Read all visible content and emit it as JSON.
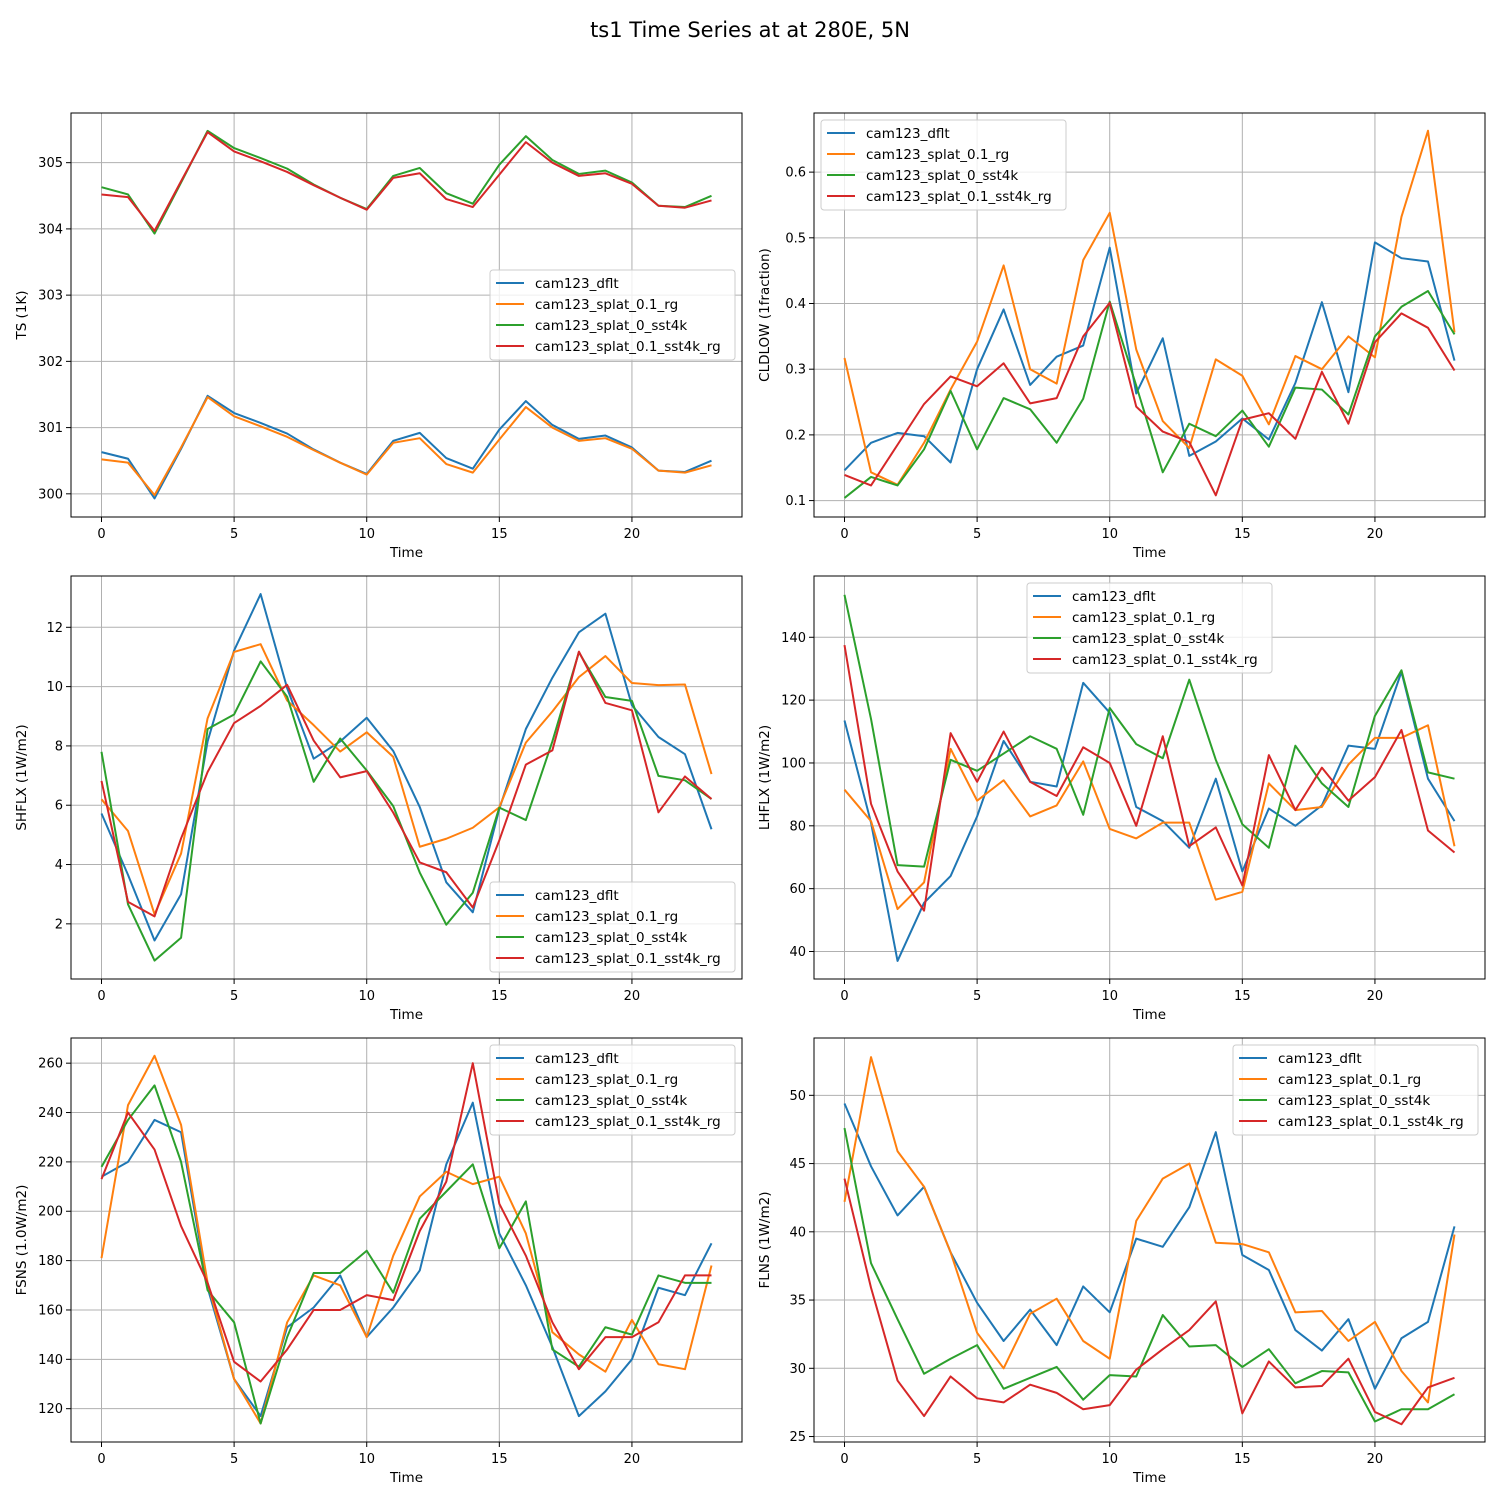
{
  "suptitle": "ts1 Time Series at at 280E, 5N",
  "colors": {
    "cam123_dflt": "#1f77b4",
    "cam123_splat_0.1_rg": "#ff7f0e",
    "cam123_splat_0_sst4k": "#2ca02c",
    "cam123_splat_0.1_sst4k_rg": "#d62728"
  },
  "chart_data": [
    {
      "type": "line",
      "title": "",
      "xlabel": "Time",
      "ylabel": "TS (1K)",
      "xlim": [
        -1.15,
        24.15
      ],
      "ylim": [
        299.65,
        305.75
      ],
      "xticks": [
        0,
        5,
        10,
        15,
        20
      ],
      "yticks": [
        300,
        301,
        302,
        303,
        304,
        305
      ],
      "legend_loc": "center-right",
      "grid": true,
      "x": [
        0,
        1,
        2,
        3,
        4,
        5,
        6,
        7,
        8,
        9,
        10,
        11,
        12,
        13,
        14,
        15,
        16,
        17,
        18,
        19,
        20,
        21,
        22,
        23
      ],
      "series": [
        {
          "name": "cam123_dflt",
          "color": "#1f77b4",
          "values": [
            300.63,
            300.53,
            299.93,
            300.68,
            301.48,
            301.22,
            301.07,
            300.91,
            300.67,
            300.47,
            300.3,
            300.8,
            300.92,
            300.54,
            300.38,
            300.97,
            301.4,
            301.04,
            300.83,
            300.88,
            300.7,
            300.35,
            300.33,
            300.5
          ]
        },
        {
          "name": "cam123_splat_0.1_rg",
          "color": "#ff7f0e",
          "values": [
            300.52,
            300.47,
            299.98,
            300.7,
            301.46,
            301.17,
            301.02,
            300.86,
            300.66,
            300.47,
            300.29,
            300.77,
            300.84,
            300.45,
            300.32,
            300.82,
            301.31,
            301.0,
            300.8,
            300.84,
            300.68,
            300.35,
            300.32,
            300.43
          ]
        },
        {
          "name": "cam123_splat_0_sst4k",
          "color": "#2ca02c",
          "values": [
            304.63,
            304.52,
            303.93,
            304.7,
            305.48,
            305.22,
            305.07,
            304.91,
            304.67,
            304.47,
            304.3,
            304.8,
            304.92,
            304.54,
            304.38,
            304.97,
            305.4,
            305.04,
            304.83,
            304.88,
            304.7,
            304.35,
            304.33,
            304.5
          ]
        },
        {
          "name": "cam123_splat_0.1_sst4k_rg",
          "color": "#d62728",
          "values": [
            304.52,
            304.48,
            303.97,
            304.72,
            305.46,
            305.17,
            305.02,
            304.86,
            304.66,
            304.47,
            304.29,
            304.77,
            304.84,
            304.45,
            304.33,
            304.82,
            305.31,
            305.0,
            304.8,
            304.84,
            304.68,
            304.35,
            304.32,
            304.43
          ]
        }
      ]
    },
    {
      "type": "line",
      "title": "",
      "xlabel": "Time",
      "ylabel": "CLDLOW (1fraction)",
      "xlim": [
        -1.15,
        24.15
      ],
      "ylim": [
        0.075,
        0.69
      ],
      "xticks": [
        0,
        5,
        10,
        15,
        20
      ],
      "yticks": [
        0.1,
        0.2,
        0.3,
        0.4,
        0.5,
        0.6
      ],
      "legend_loc": "top-left",
      "grid": true,
      "x": [
        0,
        1,
        2,
        3,
        4,
        5,
        6,
        7,
        8,
        9,
        10,
        11,
        12,
        13,
        14,
        15,
        16,
        17,
        18,
        19,
        20,
        21,
        22,
        23
      ],
      "series": [
        {
          "name": "cam123_dflt",
          "color": "#1f77b4",
          "values": [
            0.146,
            0.188,
            0.203,
            0.198,
            0.158,
            0.3,
            0.391,
            0.276,
            0.319,
            0.336,
            0.485,
            0.263,
            0.347,
            0.168,
            0.19,
            0.225,
            0.193,
            0.279,
            0.402,
            0.265,
            0.493,
            0.469,
            0.464,
            0.313
          ]
        },
        {
          "name": "cam123_splat_0.1_rg",
          "color": "#ff7f0e",
          "values": [
            0.317,
            0.143,
            0.124,
            0.188,
            0.269,
            0.342,
            0.458,
            0.3,
            0.278,
            0.466,
            0.538,
            0.33,
            0.221,
            0.18,
            0.315,
            0.29,
            0.216,
            0.32,
            0.3,
            0.35,
            0.318,
            0.532,
            0.663,
            0.356
          ]
        },
        {
          "name": "cam123_splat_0_sst4k",
          "color": "#2ca02c",
          "values": [
            0.104,
            0.136,
            0.123,
            0.178,
            0.267,
            0.178,
            0.256,
            0.239,
            0.188,
            0.255,
            0.403,
            0.275,
            0.143,
            0.217,
            0.198,
            0.237,
            0.182,
            0.272,
            0.269,
            0.231,
            0.35,
            0.395,
            0.419,
            0.353
          ]
        },
        {
          "name": "cam123_splat_0.1_sst4k_rg",
          "color": "#d62728",
          "values": [
            0.139,
            0.123,
            0.185,
            0.247,
            0.289,
            0.274,
            0.309,
            0.248,
            0.256,
            0.35,
            0.401,
            0.243,
            0.205,
            0.189,
            0.108,
            0.223,
            0.233,
            0.194,
            0.296,
            0.217,
            0.341,
            0.385,
            0.363,
            0.298
          ]
        }
      ]
    },
    {
      "type": "line",
      "title": "",
      "xlabel": "Time",
      "ylabel": "SHFLX (1W/m2)",
      "xlim": [
        -1.15,
        24.15
      ],
      "ylim": [
        0.14,
        13.73
      ],
      "xticks": [
        0,
        5,
        10,
        15,
        20
      ],
      "yticks": [
        2,
        4,
        6,
        8,
        10,
        12
      ],
      "legend_loc": "bottom-right",
      "grid": true,
      "x": [
        0,
        1,
        2,
        3,
        4,
        5,
        6,
        7,
        8,
        9,
        10,
        11,
        12,
        13,
        14,
        15,
        16,
        17,
        18,
        19,
        20,
        21,
        22,
        23
      ],
      "series": [
        {
          "name": "cam123_dflt",
          "color": "#1f77b4",
          "values": [
            5.72,
            3.65,
            1.44,
            3.0,
            8.15,
            11.22,
            13.12,
            9.95,
            7.57,
            8.15,
            8.95,
            7.83,
            5.94,
            3.4,
            2.39,
            5.88,
            8.57,
            10.3,
            11.83,
            12.46,
            9.37,
            8.3,
            7.72,
            5.19
          ]
        },
        {
          "name": "cam123_splat_0.1_rg",
          "color": "#ff7f0e",
          "values": [
            6.2,
            5.13,
            2.32,
            4.37,
            8.93,
            11.17,
            11.43,
            9.53,
            8.7,
            7.81,
            8.46,
            7.63,
            4.6,
            4.87,
            5.24,
            5.93,
            8.11,
            9.16,
            10.32,
            11.03,
            10.12,
            10.05,
            10.07,
            7.05
          ]
        },
        {
          "name": "cam123_splat_0_sst4k",
          "color": "#2ca02c",
          "values": [
            7.8,
            2.66,
            0.76,
            1.53,
            8.57,
            9.06,
            10.85,
            9.66,
            6.79,
            8.25,
            7.17,
            5.97,
            3.73,
            1.97,
            3.05,
            5.92,
            5.5,
            8.15,
            11.16,
            9.65,
            9.52,
            6.99,
            6.84,
            6.21
          ]
        },
        {
          "name": "cam123_splat_0.1_sst4k_rg",
          "color": "#d62728",
          "values": [
            6.82,
            2.74,
            2.25,
            4.88,
            7.12,
            8.77,
            9.35,
            10.06,
            8.18,
            6.94,
            7.15,
            5.75,
            4.07,
            3.74,
            2.55,
            4.82,
            7.37,
            7.85,
            11.18,
            9.45,
            9.2,
            5.76,
            6.97,
            6.21
          ]
        }
      ]
    },
    {
      "type": "line",
      "title": "",
      "xlabel": "Time",
      "ylabel": "LHFLX (1W/m2)",
      "xlim": [
        -1.15,
        24.15
      ],
      "ylim": [
        31.25,
        159.5
      ],
      "xticks": [
        0,
        5,
        10,
        15,
        20
      ],
      "yticks": [
        40,
        60,
        80,
        100,
        120,
        140
      ],
      "legend_loc": "top-center",
      "grid": true,
      "x": [
        0,
        1,
        2,
        3,
        4,
        5,
        6,
        7,
        8,
        9,
        10,
        11,
        12,
        13,
        14,
        15,
        16,
        17,
        18,
        19,
        20,
        21,
        22,
        23
      ],
      "series": [
        {
          "name": "cam123_dflt",
          "color": "#1f77b4",
          "values": [
            113.5,
            81.0,
            37.0,
            55.5,
            64.0,
            83.0,
            107.0,
            94.0,
            92.5,
            125.5,
            116.0,
            86.0,
            81.5,
            73.0,
            95.0,
            65.5,
            85.5,
            80.0,
            86.5,
            105.5,
            104.5,
            129.0,
            95.0,
            81.5
          ]
        },
        {
          "name": "cam123_splat_0.1_rg",
          "color": "#ff7f0e",
          "values": [
            91.5,
            81.5,
            53.5,
            62.0,
            104.5,
            88.0,
            94.5,
            83.0,
            86.5,
            100.5,
            79.0,
            76.0,
            81.0,
            81.0,
            56.5,
            59.0,
            93.5,
            85.0,
            86.0,
            99.5,
            108.0,
            108.0,
            112.0,
            73.5
          ]
        },
        {
          "name": "cam123_splat_0_sst4k",
          "color": "#2ca02c",
          "values": [
            153.5,
            114.0,
            67.5,
            67.0,
            101.0,
            97.5,
            103.0,
            108.5,
            104.5,
            83.5,
            117.5,
            106.0,
            101.5,
            126.5,
            101.0,
            80.5,
            73.0,
            105.5,
            93.5,
            86.0,
            115.0,
            129.5,
            97.0,
            95.0
          ]
        },
        {
          "name": "cam123_splat_0.1_sst4k_rg",
          "color": "#d62728",
          "values": [
            137.5,
            87.0,
            65.5,
            53.0,
            109.5,
            94.0,
            110.0,
            94.0,
            89.5,
            105.0,
            100.0,
            80.0,
            108.5,
            73.5,
            79.5,
            61.0,
            102.5,
            85.0,
            98.5,
            88.0,
            95.5,
            110.5,
            78.5,
            71.5
          ]
        }
      ]
    },
    {
      "type": "line",
      "title": "",
      "xlabel": "Time",
      "ylabel": "FSNS (1.0W/m2)",
      "xlim": [
        -1.15,
        24.15
      ],
      "ylim": [
        106.5,
        270.2
      ],
      "xticks": [
        0,
        5,
        10,
        15,
        20
      ],
      "yticks": [
        120,
        140,
        160,
        180,
        200,
        220,
        240,
        260
      ],
      "legend_loc": "top-right",
      "grid": true,
      "x": [
        0,
        1,
        2,
        3,
        4,
        5,
        6,
        7,
        8,
        9,
        10,
        11,
        12,
        13,
        14,
        15,
        16,
        17,
        18,
        19,
        20,
        21,
        22,
        23
      ],
      "series": [
        {
          "name": "cam123_dflt",
          "color": "#1f77b4",
          "values": [
            214,
            220,
            237,
            232,
            169,
            132,
            117,
            153,
            161,
            174,
            149,
            161,
            176,
            219,
            244,
            191,
            170,
            145,
            117,
            127,
            140,
            169,
            166,
            187
          ]
        },
        {
          "name": "cam123_splat_0.1_rg",
          "color": "#ff7f0e",
          "values": [
            181,
            243,
            263,
            235,
            171,
            132,
            114,
            155,
            174,
            170,
            149,
            182,
            206,
            216,
            211,
            214,
            191,
            151,
            142,
            135,
            156,
            138,
            136,
            178
          ]
        },
        {
          "name": "cam123_splat_0_sst4k",
          "color": "#2ca02c",
          "values": [
            218,
            237,
            251,
            220,
            168,
            155,
            114,
            149,
            175,
            175,
            184,
            167,
            197,
            208,
            219,
            185,
            204,
            144,
            137,
            153,
            150,
            174,
            171,
            171
          ]
        },
        {
          "name": "cam123_splat_0.1_sst4k_rg",
          "color": "#d62728",
          "values": [
            213,
            240,
            225,
            194,
            171,
            139,
            131,
            144,
            160,
            160,
            166,
            164,
            192,
            212,
            260,
            203,
            182,
            155,
            136,
            149,
            149,
            155,
            174,
            174
          ]
        }
      ]
    },
    {
      "type": "line",
      "title": "",
      "xlabel": "Time",
      "ylabel": "FLNS (1W/m2)",
      "xlim": [
        -1.15,
        24.15
      ],
      "ylim": [
        24.6,
        54.2
      ],
      "xticks": [
        0,
        5,
        10,
        15,
        20
      ],
      "yticks": [
        25,
        30,
        35,
        40,
        45,
        50
      ],
      "legend_loc": "top-right",
      "grid": true,
      "x": [
        0,
        1,
        2,
        3,
        4,
        5,
        6,
        7,
        8,
        9,
        10,
        11,
        12,
        13,
        14,
        15,
        16,
        17,
        18,
        19,
        20,
        21,
        22,
        23
      ],
      "series": [
        {
          "name": "cam123_dflt",
          "color": "#1f77b4",
          "values": [
            49.4,
            44.8,
            41.2,
            43.3,
            38.5,
            34.8,
            32.0,
            34.3,
            31.7,
            36.0,
            34.1,
            39.5,
            38.9,
            41.8,
            47.3,
            38.3,
            37.2,
            32.8,
            31.3,
            33.6,
            28.5,
            32.2,
            33.4,
            40.4
          ]
        },
        {
          "name": "cam123_splat_0.1_rg",
          "color": "#ff7f0e",
          "values": [
            42.2,
            52.8,
            45.9,
            43.3,
            38.5,
            32.6,
            30.0,
            34.0,
            35.1,
            32.0,
            30.7,
            40.8,
            43.9,
            45.0,
            39.2,
            39.1,
            38.5,
            34.1,
            34.2,
            32.0,
            33.4,
            29.8,
            27.5,
            39.8
          ]
        },
        {
          "name": "cam123_splat_0_sst4k",
          "color": "#2ca02c",
          "values": [
            47.6,
            37.7,
            33.6,
            29.6,
            30.7,
            31.7,
            28.5,
            29.3,
            30.1,
            27.7,
            29.5,
            29.4,
            33.9,
            31.6,
            31.7,
            30.1,
            31.4,
            28.9,
            29.8,
            29.7,
            26.1,
            27.0,
            27.0,
            28.1
          ]
        },
        {
          "name": "cam123_splat_0.1_sst4k_rg",
          "color": "#d62728",
          "values": [
            43.9,
            35.9,
            29.1,
            26.5,
            29.4,
            27.8,
            27.5,
            28.8,
            28.2,
            27.0,
            27.3,
            29.9,
            31.4,
            32.8,
            34.9,
            26.7,
            30.5,
            28.6,
            28.7,
            30.7,
            26.8,
            25.9,
            28.6,
            29.3
          ]
        }
      ]
    }
  ]
}
